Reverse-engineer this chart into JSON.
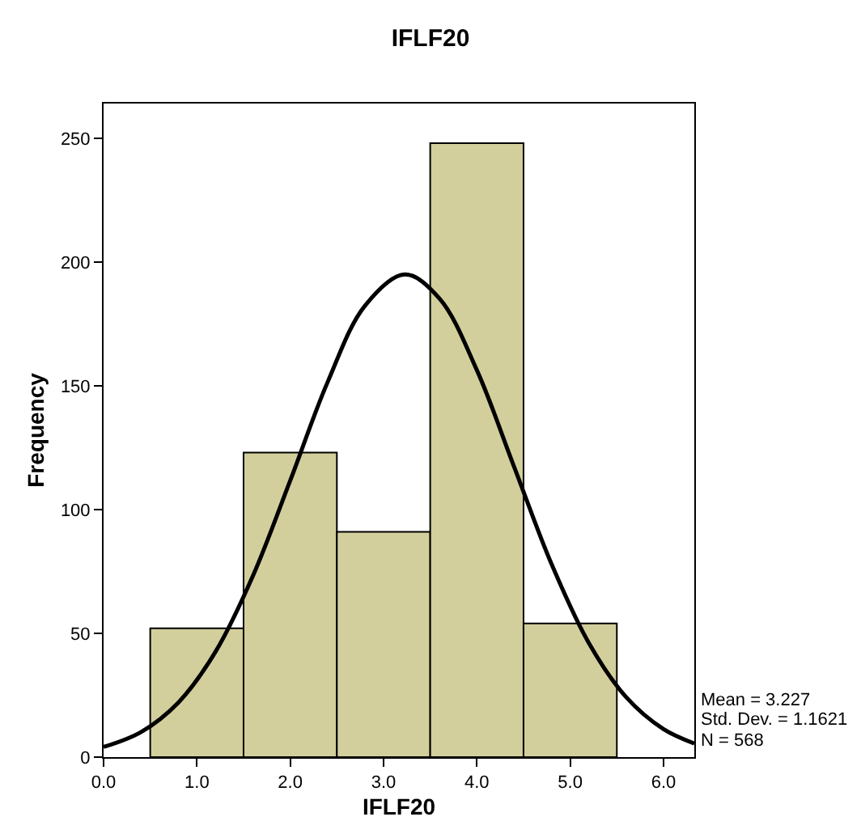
{
  "chart_data": {
    "type": "histogram",
    "title": "IFLF20",
    "xlabel": "IFLF20",
    "ylabel": "Frequency",
    "bins": [
      0.5,
      1.5,
      2.5,
      3.5,
      4.5,
      5.5
    ],
    "values": [
      52,
      123,
      91,
      248,
      54
    ],
    "color": "#d3cf9c",
    "series": [
      {
        "type": "line",
        "color": "#000000",
        "x": [
          0,
          0.4,
          0.8,
          1.2,
          1.6,
          2.0,
          2.4,
          2.8,
          3.227,
          3.6,
          4.0,
          4.4,
          4.8,
          5.2,
          5.6,
          6.0,
          6.33
        ],
        "values": [
          4.1,
          10.1,
          22.0,
          42.6,
          73.2,
          111.7,
          151.4,
          182.3,
          195,
          185.2,
          156.3,
          117.2,
          78.0,
          46.1,
          24.2,
          11.3,
          5.5
        ]
      }
    ],
    "xlim": [
      0,
      6.33
    ],
    "xticks": [
      {
        "value": 0,
        "label": "0.0"
      },
      {
        "value": 1,
        "label": "1.0"
      },
      {
        "value": 2,
        "label": "2.0"
      },
      {
        "value": 3,
        "label": "3.0"
      },
      {
        "value": 4,
        "label": "4.0"
      },
      {
        "value": 5,
        "label": "5.0"
      },
      {
        "value": 6,
        "label": "6.0"
      }
    ],
    "ylim": [
      0,
      264
    ],
    "yticks": [
      0,
      50,
      100,
      150,
      200,
      250
    ],
    "grid": false,
    "annotations": [
      "Mean = 3.227",
      "Std. Dev. = 1.1621",
      "N = 568"
    ]
  }
}
